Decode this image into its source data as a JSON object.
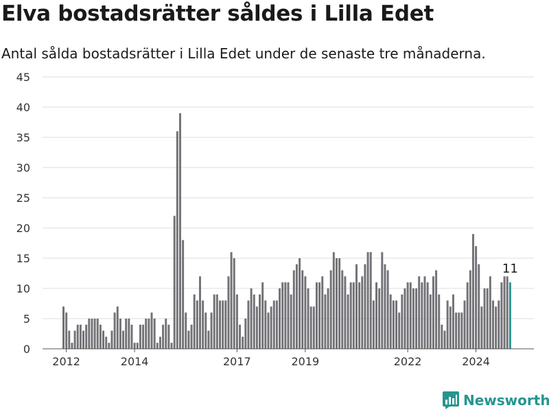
{
  "header": {
    "title": "Elva bostadsrätter såldes i Lilla Edet",
    "subtitle": "Antal sålda bostadsrätter i Lilla Edet under de senaste tre månaderna."
  },
  "brand": {
    "name": "Newsworthy",
    "icon": "newsworthy-logo-icon",
    "color": "#27958f"
  },
  "chart_data": {
    "type": "bar",
    "title": "Elva bostadsrätter såldes i Lilla Edet",
    "subtitle": "Antal sålda bostadsrätter i Lilla Edet under de senaste tre månaderna.",
    "xlabel": "",
    "ylabel": "",
    "ylim": [
      0,
      45
    ],
    "y_ticks": [
      0,
      5,
      10,
      15,
      20,
      25,
      30,
      35,
      40,
      45
    ],
    "x_tick_labels": [
      "2012",
      "2014",
      "2017",
      "2019",
      "2022",
      "2024"
    ],
    "x_tick_positions": [
      1,
      25,
      61,
      85,
      121,
      145
    ],
    "bar_color": "#737277",
    "highlight_color": "#27958f",
    "grid": true,
    "highlight_label": "11",
    "values": [
      7,
      6,
      3,
      1,
      3,
      4,
      4,
      3,
      4,
      5,
      5,
      5,
      5,
      4,
      3,
      2,
      1,
      3,
      6,
      7,
      5,
      3,
      5,
      5,
      4,
      1,
      1,
      4,
      4,
      5,
      5,
      6,
      5,
      1,
      2,
      4,
      5,
      4,
      1,
      22,
      36,
      39,
      18,
      6,
      3,
      4,
      9,
      8,
      12,
      8,
      6,
      3,
      6,
      9,
      9,
      8,
      8,
      8,
      12,
      16,
      15,
      9,
      4,
      2,
      5,
      8,
      10,
      9,
      7,
      9,
      11,
      8,
      6,
      7,
      8,
      8,
      10,
      11,
      11,
      11,
      9,
      13,
      14,
      15,
      13,
      12,
      10,
      7,
      7,
      11,
      11,
      12,
      9,
      10,
      13,
      16,
      15,
      15,
      13,
      12,
      9,
      11,
      11,
      14,
      11,
      12,
      14,
      16,
      16,
      8,
      11,
      10,
      16,
      14,
      13,
      9,
      8,
      8,
      6,
      9,
      10,
      11,
      11,
      10,
      10,
      12,
      11,
      12,
      11,
      9,
      12,
      13,
      9,
      4,
      3,
      8,
      7,
      9,
      6,
      6,
      6,
      8,
      11,
      13,
      19,
      17,
      14,
      7,
      10,
      10,
      12,
      8,
      7,
      8,
      11,
      12,
      12,
      11
    ]
  }
}
